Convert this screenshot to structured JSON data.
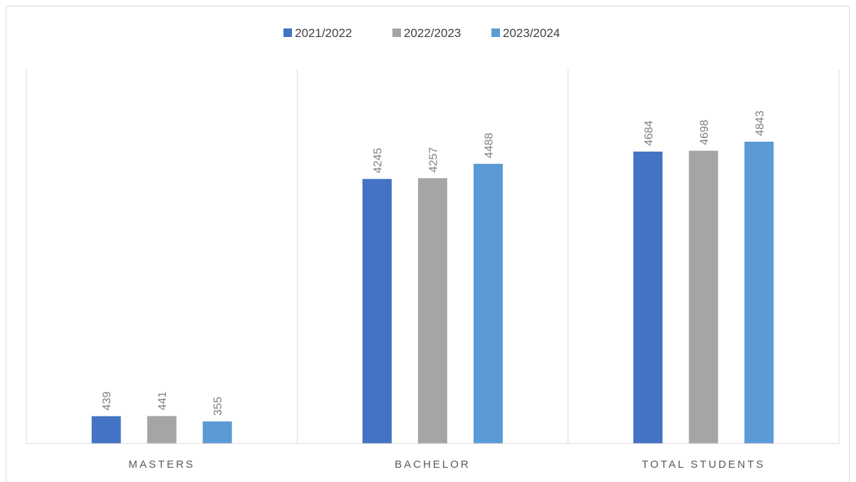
{
  "chart_data": {
    "type": "bar",
    "title": "",
    "xlabel": "",
    "ylabel": "",
    "categories": [
      "MASTERS",
      "BACHELOR",
      "TOTAL STUDENTS"
    ],
    "series": [
      {
        "name": "2021/2022",
        "color": "#4472c4",
        "values": [
          439,
          4245,
          4684
        ]
      },
      {
        "name": "2022/2023",
        "color": "#a5a5a5",
        "values": [
          441,
          4257,
          4698
        ]
      },
      {
        "name": "2023/2024",
        "color": "#5b9bd5",
        "values": [
          355,
          4488,
          4843
        ]
      }
    ],
    "ylim": [
      0,
      5900
    ],
    "grid": false,
    "legend_position": "top",
    "data_labels": true,
    "data_label_color": "#7f7f7f",
    "axis_color": "#d9d9d9"
  }
}
